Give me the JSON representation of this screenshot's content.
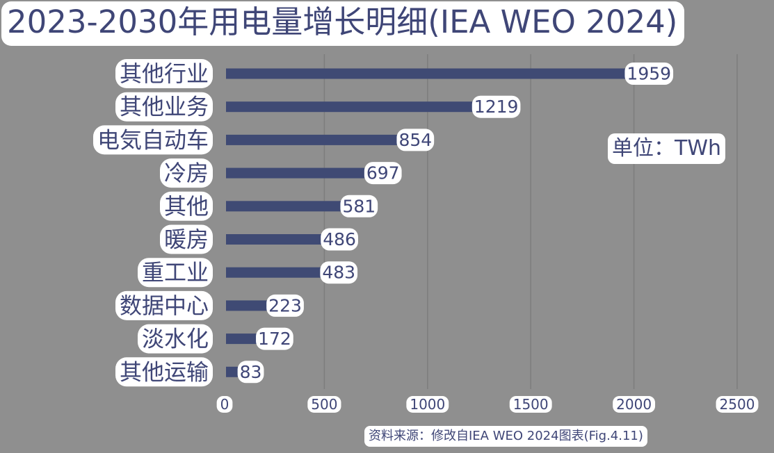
{
  "chart_data": {
    "type": "bar",
    "orientation": "horizontal",
    "title": "2023-2030年用电量增长明细(IEA WEO 2024)",
    "categories": [
      "其他行业",
      "其他业务",
      "电気自动车",
      "冷房",
      "其他",
      "暖房",
      "重工业",
      "数据中心",
      "淡水化",
      "其他运输"
    ],
    "values": [
      1959,
      1219,
      854,
      697,
      581,
      486,
      483,
      223,
      172,
      83
    ],
    "value_labels": [
      "1959",
      "1219",
      "854",
      "697",
      "581",
      "486",
      "483",
      "223",
      "172",
      "83"
    ],
    "x_ticks": [
      0,
      500,
      1000,
      1500,
      2000,
      2500
    ],
    "x_tick_labels": [
      "0",
      "500",
      "1000",
      "1500",
      "2000",
      "2500"
    ],
    "xlim": [
      0,
      2500
    ],
    "unit": "单位：TWh",
    "grid": "vertical",
    "bar_color": "#3f4a74"
  },
  "source": "资料来源：修改自IEA WEO 2024图表(Fig.4.11)"
}
